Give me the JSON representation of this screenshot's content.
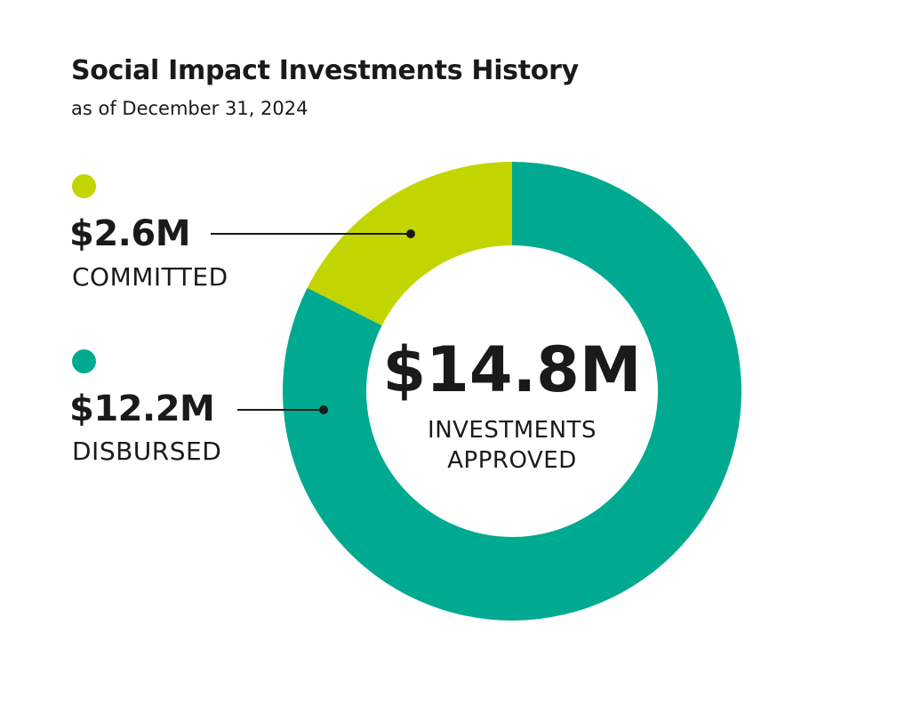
{
  "chart_data": {
    "type": "pie",
    "title": "Social Impact Investments History",
    "subtitle": "as of December 31, 2024",
    "center": {
      "value": "$14.8M",
      "label_line1": "INVESTMENTS",
      "label_line2": "APPROVED"
    },
    "categories": [
      "COMMITTED",
      "DISBURSED"
    ],
    "values": [
      2.6,
      12.2
    ],
    "value_labels": [
      "$2.6M",
      "$12.2M"
    ],
    "total": 14.8,
    "colors": [
      "#c3d500",
      "#00aa90"
    ],
    "legend_position": "left"
  }
}
